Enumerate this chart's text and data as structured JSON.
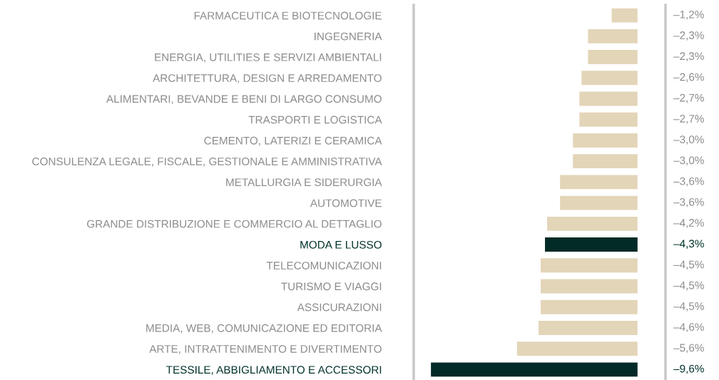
{
  "chart_data": {
    "type": "bar",
    "orientation": "horizontal",
    "categories": [
      "FARMACEUTICA E BIOTECNOLOGIE",
      "INGEGNERIA",
      "ENERGIA, UTILITIES E SERVIZI AMBIENTALI",
      "ARCHITETTURA, DESIGN E ARREDAMENTO",
      "ALIMENTARI, BEVANDE E BENI DI LARGO CONSUMO",
      "TRASPORTI E LOGISTICA",
      "CEMENTO, LATERIZI E CERAMICA",
      "CONSULENZA LEGALE, FISCALE, GESTIONALE E AMMINISTRATIVA",
      "METALLURGIA E SIDERURGIA",
      "AUTOMOTIVE",
      "GRANDE DISTRIBUZIONE E COMMERCIO AL DETTAGLIO",
      "MODA E LUSSO",
      "TELECOMUNICAZIONI",
      "TURISMO E VIAGGI",
      "ASSICURAZIONI",
      "MEDIA, WEB, COMUNICAZIONE ED EDITORIA",
      "ARTE, INTRATTENIMENTO E DIVERTIMENTO",
      "TESSILE, ABBIGLIAMENTO E ACCESSORI"
    ],
    "values": [
      -1.2,
      -2.3,
      -2.3,
      -2.6,
      -2.7,
      -2.7,
      -3.0,
      -3.0,
      -3.6,
      -3.6,
      -4.2,
      -4.3,
      -4.5,
      -4.5,
      -4.5,
      -4.6,
      -5.6,
      -9.6
    ],
    "value_labels": [
      "–1,2%",
      "–2,3%",
      "–2,3%",
      "–2,6%",
      "–2,7%",
      "–2,7%",
      "–3,0%",
      "–3,0%",
      "–3,6%",
      "–3,6%",
      "–4,2%",
      "–4,3%",
      "–4,5%",
      "–4,5%",
      "–4,5%",
      "–4,6%",
      "–5,6%",
      "–9,6%"
    ],
    "colors": [
      "#e3d5b8",
      "#e3d5b8",
      "#e3d5b8",
      "#e3d5b8",
      "#e3d5b8",
      "#e3d5b8",
      "#e3d5b8",
      "#e3d5b8",
      "#e3d5b8",
      "#e3d5b8",
      "#e3d5b8",
      "#022a26",
      "#e3d5b8",
      "#e3d5b8",
      "#e3d5b8",
      "#e3d5b8",
      "#e3d5b8",
      "#022a26"
    ],
    "xlim": [
      -10.4,
      1.3
    ],
    "tick_labels": "y",
    "grid": false
  }
}
